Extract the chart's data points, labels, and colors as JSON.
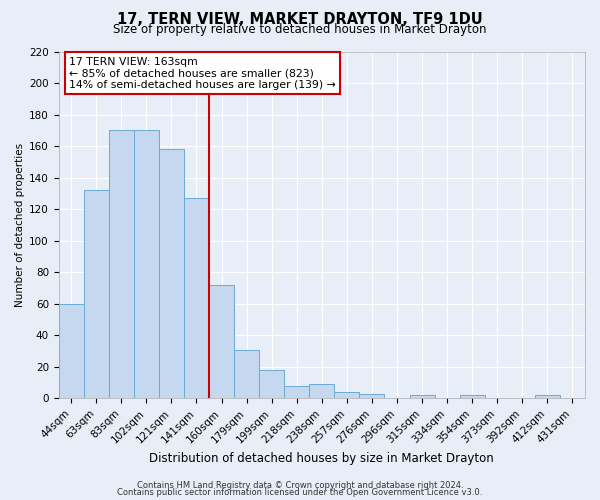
{
  "title": "17, TERN VIEW, MARKET DRAYTON, TF9 1DU",
  "subtitle": "Size of property relative to detached houses in Market Drayton",
  "xlabel": "Distribution of detached houses by size in Market Drayton",
  "ylabel": "Number of detached properties",
  "footer_line1": "Contains HM Land Registry data © Crown copyright and database right 2024.",
  "footer_line2": "Contains public sector information licensed under the Open Government Licence v3.0.",
  "bin_labels": [
    "44sqm",
    "63sqm",
    "83sqm",
    "102sqm",
    "121sqm",
    "141sqm",
    "160sqm",
    "179sqm",
    "199sqm",
    "218sqm",
    "238sqm",
    "257sqm",
    "276sqm",
    "296sqm",
    "315sqm",
    "334sqm",
    "354sqm",
    "373sqm",
    "392sqm",
    "412sqm",
    "431sqm"
  ],
  "bar_values": [
    60,
    132,
    170,
    170,
    158,
    127,
    72,
    31,
    18,
    8,
    9,
    4,
    3,
    0,
    2,
    0,
    2,
    0,
    0,
    2,
    0
  ],
  "bar_color": "#c5d8f0",
  "bar_edgecolor": "#6aaad4",
  "vline_color": "#cc0000",
  "ylim": [
    0,
    220
  ],
  "yticks": [
    0,
    20,
    40,
    60,
    80,
    100,
    120,
    140,
    160,
    180,
    200,
    220
  ],
  "annotation_title": "17 TERN VIEW: 163sqm",
  "annotation_line1": "← 85% of detached houses are smaller (823)",
  "annotation_line2": "14% of semi-detached houses are larger (139) →",
  "annotation_box_edgecolor": "#cc0000",
  "background_color": "#e8eef8",
  "plot_bg_color": "#e8eef8",
  "grid_color": "#ffffff",
  "title_fontsize": 10.5,
  "subtitle_fontsize": 8.5,
  "ylabel_fontsize": 7.5,
  "xlabel_fontsize": 8.5,
  "tick_fontsize": 7.5,
  "footer_fontsize": 6.0
}
